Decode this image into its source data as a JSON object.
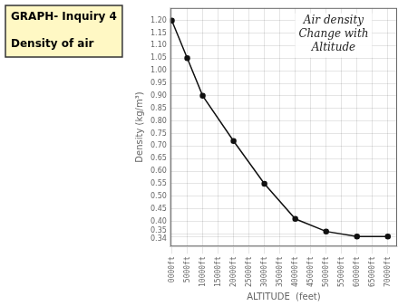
{
  "chart_data": {
    "type": "line",
    "title": "Air density\nChange with\nAltitude",
    "annotations": [
      "GRAPH- Inquiry 4",
      "Density of air"
    ],
    "x_label": "ALTITUDE  (feet)",
    "y_label": "Density (kg/m³)",
    "x": [
      0,
      5000,
      10000,
      20000,
      30000,
      40000,
      50000,
      60000,
      70000
    ],
    "values": [
      1.2,
      1.05,
      0.9,
      0.72,
      0.55,
      0.41,
      0.36,
      0.34,
      0.34
    ],
    "color": "#111111",
    "marker": "circle",
    "line_style": "solid",
    "xlim": [
      -500,
      73000
    ],
    "xticks": [
      {
        "value": 0,
        "label": "0000ft"
      },
      {
        "value": 5000,
        "label": "5000ft"
      },
      {
        "value": 10000,
        "label": "10000ft"
      },
      {
        "value": 15000,
        "label": "15000ft"
      },
      {
        "value": 20000,
        "label": "20000ft"
      },
      {
        "value": 25000,
        "label": "25000ft"
      },
      {
        "value": 30000,
        "label": "30000ft"
      },
      {
        "value": 35000,
        "label": "35000ft"
      },
      {
        "value": 40000,
        "label": "40000ft"
      },
      {
        "value": 45000,
        "label": "45000ft"
      },
      {
        "value": 50000,
        "label": "50000ft"
      },
      {
        "value": 55000,
        "label": "55000ft"
      },
      {
        "value": 60000,
        "label": "60000ft"
      },
      {
        "value": 65000,
        "label": "65000ft"
      },
      {
        "value": 70000,
        "label": "70000ft"
      }
    ],
    "ylim": [
      0.3,
      1.25
    ],
    "yticks": [
      0.34,
      0.35,
      {
        "value": 0.4,
        "label": "0.40"
      },
      0.45,
      {
        "value": 0.5,
        "label": "0.50"
      },
      0.55,
      {
        "value": 0.6,
        "label": "0.60"
      },
      0.65,
      {
        "value": 0.7,
        "label": "0.70"
      },
      0.75,
      {
        "value": 0.8,
        "label": "0.80"
      },
      0.85,
      {
        "value": 0.9,
        "label": "0.90"
      },
      0.95,
      {
        "value": 1.0,
        "label": "1.00"
      },
      1.05,
      {
        "value": 1.1,
        "label": "1.10"
      },
      1.15,
      {
        "value": 1.2,
        "label": "1.20"
      }
    ],
    "grid": true
  }
}
